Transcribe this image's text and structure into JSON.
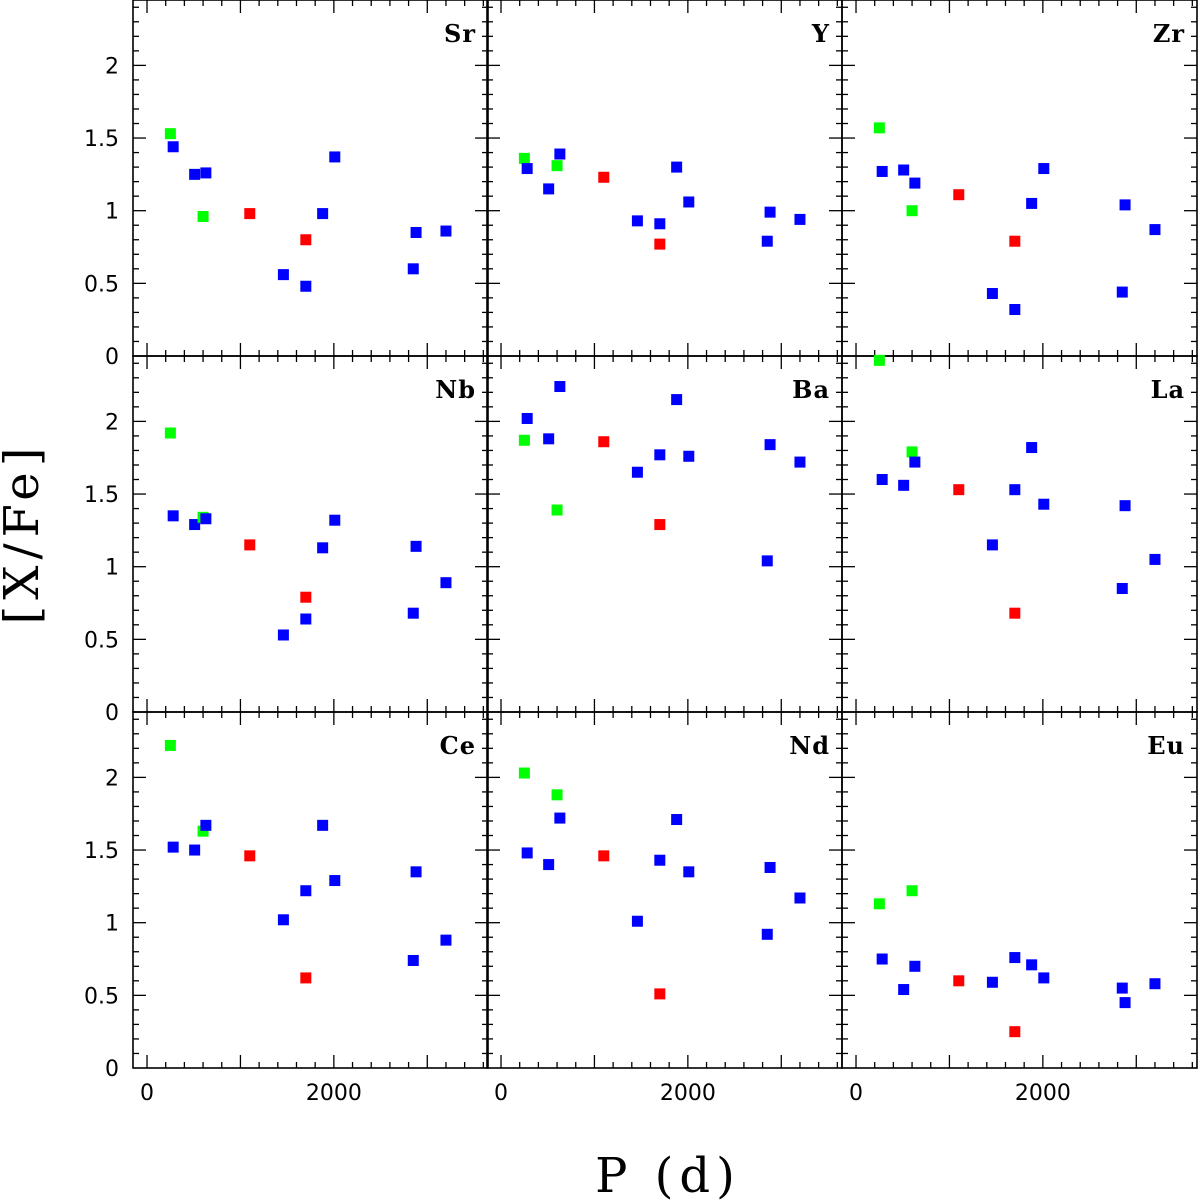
{
  "chart_data": {
    "type": "scatter",
    "xlabel": "P (d)",
    "ylabel": "[X/Fe]",
    "xlim": [
      -150,
      3650
    ],
    "ylim": [
      0,
      2.45
    ],
    "x_ticks": [
      0,
      2000
    ],
    "y_ticks": [
      0,
      0.5,
      1,
      1.5,
      2
    ],
    "y_tick_labels": [
      "0",
      "0.5",
      "1",
      "1.5",
      "2"
    ],
    "x_tick_labels": [
      "0",
      "2000"
    ],
    "colors": {
      "blue": "#0000ff",
      "red": "#ff0000",
      "green": "#00ff00"
    },
    "panels": [
      {
        "label": "Sr",
        "points": [
          {
            "x": 250,
            "y": 1.53,
            "c": "green"
          },
          {
            "x": 280,
            "y": 1.44,
            "c": "blue"
          },
          {
            "x": 510,
            "y": 1.25,
            "c": "blue"
          },
          {
            "x": 630,
            "y": 1.26,
            "c": "blue"
          },
          {
            "x": 600,
            "y": 0.96,
            "c": "green"
          },
          {
            "x": 1100,
            "y": 0.98,
            "c": "red"
          },
          {
            "x": 1460,
            "y": 0.56,
            "c": "blue"
          },
          {
            "x": 1700,
            "y": 0.48,
            "c": "blue"
          },
          {
            "x": 1700,
            "y": 0.8,
            "c": "red"
          },
          {
            "x": 1880,
            "y": 0.98,
            "c": "blue"
          },
          {
            "x": 2010,
            "y": 1.37,
            "c": "blue"
          },
          {
            "x": 2850,
            "y": 0.6,
            "c": "blue"
          },
          {
            "x": 2880,
            "y": 0.85,
            "c": "blue"
          },
          {
            "x": 3200,
            "y": 0.86,
            "c": "blue"
          }
        ]
      },
      {
        "label": "Y",
        "points": [
          {
            "x": 250,
            "y": 1.36,
            "c": "green"
          },
          {
            "x": 280,
            "y": 1.29,
            "c": "blue"
          },
          {
            "x": 510,
            "y": 1.15,
            "c": "blue"
          },
          {
            "x": 630,
            "y": 1.39,
            "c": "blue"
          },
          {
            "x": 600,
            "y": 1.31,
            "c": "green"
          },
          {
            "x": 1100,
            "y": 1.23,
            "c": "red"
          },
          {
            "x": 1460,
            "y": 0.93,
            "c": "blue"
          },
          {
            "x": 1700,
            "y": 0.91,
            "c": "blue"
          },
          {
            "x": 1700,
            "y": 0.77,
            "c": "red"
          },
          {
            "x": 1880,
            "y": 1.3,
            "c": "blue"
          },
          {
            "x": 2010,
            "y": 1.06,
            "c": "blue"
          },
          {
            "x": 2850,
            "y": 0.79,
            "c": "blue"
          },
          {
            "x": 2880,
            "y": 0.99,
            "c": "blue"
          },
          {
            "x": 3200,
            "y": 0.94,
            "c": "blue"
          }
        ]
      },
      {
        "label": "Zr",
        "points": [
          {
            "x": 250,
            "y": 1.57,
            "c": "green"
          },
          {
            "x": 280,
            "y": 1.27,
            "c": "blue"
          },
          {
            "x": 510,
            "y": 1.28,
            "c": "blue"
          },
          {
            "x": 630,
            "y": 1.19,
            "c": "blue"
          },
          {
            "x": 600,
            "y": 1.0,
            "c": "green"
          },
          {
            "x": 1100,
            "y": 1.11,
            "c": "red"
          },
          {
            "x": 1460,
            "y": 0.43,
            "c": "blue"
          },
          {
            "x": 1700,
            "y": 0.32,
            "c": "blue"
          },
          {
            "x": 1700,
            "y": 0.79,
            "c": "red"
          },
          {
            "x": 1880,
            "y": 1.05,
            "c": "blue"
          },
          {
            "x": 2010,
            "y": 1.29,
            "c": "blue"
          },
          {
            "x": 2850,
            "y": 0.44,
            "c": "blue"
          },
          {
            "x": 2880,
            "y": 1.04,
            "c": "blue"
          },
          {
            "x": 3200,
            "y": 0.87,
            "c": "blue"
          }
        ]
      },
      {
        "label": "Nb",
        "points": [
          {
            "x": 250,
            "y": 1.92,
            "c": "green"
          },
          {
            "x": 280,
            "y": 1.35,
            "c": "blue"
          },
          {
            "x": 510,
            "y": 1.29,
            "c": "blue"
          },
          {
            "x": 600,
            "y": 1.34,
            "c": "green"
          },
          {
            "x": 630,
            "y": 1.33,
            "c": "blue"
          },
          {
            "x": 1100,
            "y": 1.15,
            "c": "red"
          },
          {
            "x": 1460,
            "y": 0.53,
            "c": "blue"
          },
          {
            "x": 1700,
            "y": 0.64,
            "c": "blue"
          },
          {
            "x": 1700,
            "y": 0.79,
            "c": "red"
          },
          {
            "x": 1880,
            "y": 1.13,
            "c": "blue"
          },
          {
            "x": 2010,
            "y": 1.32,
            "c": "blue"
          },
          {
            "x": 2850,
            "y": 0.68,
            "c": "blue"
          },
          {
            "x": 2880,
            "y": 1.14,
            "c": "blue"
          },
          {
            "x": 3200,
            "y": 0.89,
            "c": "blue"
          }
        ]
      },
      {
        "label": "Ba",
        "points": [
          {
            "x": 250,
            "y": 1.87,
            "c": "green"
          },
          {
            "x": 280,
            "y": 2.02,
            "c": "blue"
          },
          {
            "x": 510,
            "y": 1.88,
            "c": "blue"
          },
          {
            "x": 630,
            "y": 2.24,
            "c": "blue"
          },
          {
            "x": 600,
            "y": 1.39,
            "c": "green"
          },
          {
            "x": 1100,
            "y": 1.86,
            "c": "red"
          },
          {
            "x": 1460,
            "y": 1.65,
            "c": "blue"
          },
          {
            "x": 1700,
            "y": 1.77,
            "c": "blue"
          },
          {
            "x": 1700,
            "y": 1.29,
            "c": "red"
          },
          {
            "x": 1880,
            "y": 2.15,
            "c": "blue"
          },
          {
            "x": 2010,
            "y": 1.76,
            "c": "blue"
          },
          {
            "x": 2850,
            "y": 1.04,
            "c": "blue"
          },
          {
            "x": 2880,
            "y": 1.84,
            "c": "blue"
          },
          {
            "x": 3200,
            "y": 1.72,
            "c": "blue"
          }
        ]
      },
      {
        "label": "La",
        "points": [
          {
            "x": 250,
            "y": 2.42,
            "c": "green"
          },
          {
            "x": 280,
            "y": 1.6,
            "c": "blue"
          },
          {
            "x": 510,
            "y": 1.56,
            "c": "blue"
          },
          {
            "x": 600,
            "y": 1.79,
            "c": "green"
          },
          {
            "x": 630,
            "y": 1.72,
            "c": "blue"
          },
          {
            "x": 1100,
            "y": 1.53,
            "c": "red"
          },
          {
            "x": 1460,
            "y": 1.15,
            "c": "blue"
          },
          {
            "x": 1700,
            "y": 1.53,
            "c": "blue"
          },
          {
            "x": 1700,
            "y": 0.68,
            "c": "red"
          },
          {
            "x": 1880,
            "y": 1.82,
            "c": "blue"
          },
          {
            "x": 2010,
            "y": 1.43,
            "c": "blue"
          },
          {
            "x": 2850,
            "y": 0.85,
            "c": "blue"
          },
          {
            "x": 2880,
            "y": 1.42,
            "c": "blue"
          },
          {
            "x": 3200,
            "y": 1.05,
            "c": "blue"
          }
        ]
      },
      {
        "label": "Ce",
        "points": [
          {
            "x": 250,
            "y": 2.22,
            "c": "green"
          },
          {
            "x": 280,
            "y": 1.52,
            "c": "blue"
          },
          {
            "x": 510,
            "y": 1.5,
            "c": "blue"
          },
          {
            "x": 600,
            "y": 1.63,
            "c": "green"
          },
          {
            "x": 630,
            "y": 1.67,
            "c": "blue"
          },
          {
            "x": 1100,
            "y": 1.46,
            "c": "red"
          },
          {
            "x": 1460,
            "y": 1.02,
            "c": "blue"
          },
          {
            "x": 1700,
            "y": 1.22,
            "c": "blue"
          },
          {
            "x": 1700,
            "y": 0.62,
            "c": "red"
          },
          {
            "x": 1880,
            "y": 1.67,
            "c": "blue"
          },
          {
            "x": 2010,
            "y": 1.29,
            "c": "blue"
          },
          {
            "x": 2850,
            "y": 0.74,
            "c": "blue"
          },
          {
            "x": 2880,
            "y": 1.35,
            "c": "blue"
          },
          {
            "x": 3200,
            "y": 0.88,
            "c": "blue"
          }
        ]
      },
      {
        "label": "Nd",
        "points": [
          {
            "x": 250,
            "y": 2.03,
            "c": "green"
          },
          {
            "x": 280,
            "y": 1.48,
            "c": "blue"
          },
          {
            "x": 510,
            "y": 1.4,
            "c": "blue"
          },
          {
            "x": 600,
            "y": 1.88,
            "c": "green"
          },
          {
            "x": 630,
            "y": 1.72,
            "c": "blue"
          },
          {
            "x": 1100,
            "y": 1.46,
            "c": "red"
          },
          {
            "x": 1460,
            "y": 1.01,
            "c": "blue"
          },
          {
            "x": 1700,
            "y": 1.43,
            "c": "blue"
          },
          {
            "x": 1700,
            "y": 0.51,
            "c": "red"
          },
          {
            "x": 1880,
            "y": 1.71,
            "c": "blue"
          },
          {
            "x": 2010,
            "y": 1.35,
            "c": "blue"
          },
          {
            "x": 2850,
            "y": 0.92,
            "c": "blue"
          },
          {
            "x": 2880,
            "y": 1.38,
            "c": "blue"
          },
          {
            "x": 3200,
            "y": 1.17,
            "c": "blue"
          }
        ]
      },
      {
        "label": "Eu",
        "points": [
          {
            "x": 250,
            "y": 1.13,
            "c": "green"
          },
          {
            "x": 280,
            "y": 0.75,
            "c": "blue"
          },
          {
            "x": 510,
            "y": 0.54,
            "c": "blue"
          },
          {
            "x": 600,
            "y": 1.22,
            "c": "green"
          },
          {
            "x": 630,
            "y": 0.7,
            "c": "blue"
          },
          {
            "x": 1100,
            "y": 0.6,
            "c": "red"
          },
          {
            "x": 1460,
            "y": 0.59,
            "c": "blue"
          },
          {
            "x": 1700,
            "y": 0.76,
            "c": "blue"
          },
          {
            "x": 1700,
            "y": 0.25,
            "c": "red"
          },
          {
            "x": 1880,
            "y": 0.71,
            "c": "blue"
          },
          {
            "x": 2010,
            "y": 0.62,
            "c": "blue"
          },
          {
            "x": 2850,
            "y": 0.55,
            "c": "blue"
          },
          {
            "x": 2880,
            "y": 0.45,
            "c": "blue"
          },
          {
            "x": 3200,
            "y": 0.58,
            "c": "blue"
          }
        ]
      }
    ]
  }
}
